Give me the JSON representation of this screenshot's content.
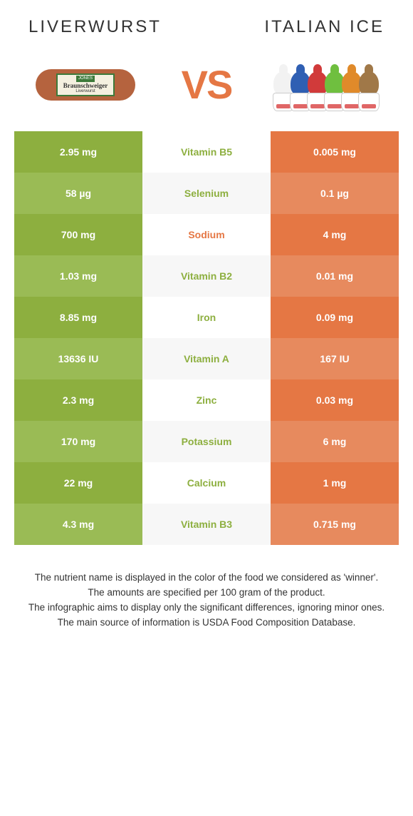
{
  "header": {
    "left": "LIVERWURST",
    "right": "ITALIAN ICE"
  },
  "vs": "VS",
  "colors": {
    "left_winner": "#8daf3f",
    "left_light": "#9abb55",
    "right_winner": "#e57744",
    "right_light": "#e78a5e",
    "mid_winner_left": "#8daf3f",
    "mid_winner_right": "#e57744",
    "mid_bg_a": "#ffffff",
    "mid_bg_b": "#f7f7f7",
    "vs_color": "#e57744"
  },
  "sausage_label": {
    "brand": "JONES",
    "main": "Braunschweiger",
    "sub": "Liverwurst"
  },
  "ice_colors": [
    "#f2f2f2",
    "#2f5fb3",
    "#d13a3a",
    "#6fbf3f",
    "#e08a2a",
    "#a07848"
  ],
  "rows": [
    {
      "left": "2.95 mg",
      "mid": "Vitamin B5",
      "right": "0.005 mg",
      "winner": "left"
    },
    {
      "left": "58 µg",
      "mid": "Selenium",
      "right": "0.1 µg",
      "winner": "left"
    },
    {
      "left": "700 mg",
      "mid": "Sodium",
      "right": "4 mg",
      "winner": "right"
    },
    {
      "left": "1.03 mg",
      "mid": "Vitamin B2",
      "right": "0.01 mg",
      "winner": "left"
    },
    {
      "left": "8.85 mg",
      "mid": "Iron",
      "right": "0.09 mg",
      "winner": "left"
    },
    {
      "left": "13636 IU",
      "mid": "Vitamin A",
      "right": "167 IU",
      "winner": "left"
    },
    {
      "left": "2.3 mg",
      "mid": "Zinc",
      "right": "0.03 mg",
      "winner": "left"
    },
    {
      "left": "170 mg",
      "mid": "Potassium",
      "right": "6 mg",
      "winner": "left"
    },
    {
      "left": "22 mg",
      "mid": "Calcium",
      "right": "1 mg",
      "winner": "left"
    },
    {
      "left": "4.3 mg",
      "mid": "Vitamin B3",
      "right": "0.715 mg",
      "winner": "left"
    }
  ],
  "footer": {
    "l1": "The nutrient name is displayed in the color of the food we considered as 'winner'.",
    "l2": "The amounts are specified per 100 gram of the product.",
    "l3": "The infographic aims to display only the significant differences, ignoring minor ones.",
    "l4": "The main source of information is USDA Food Composition Database."
  }
}
